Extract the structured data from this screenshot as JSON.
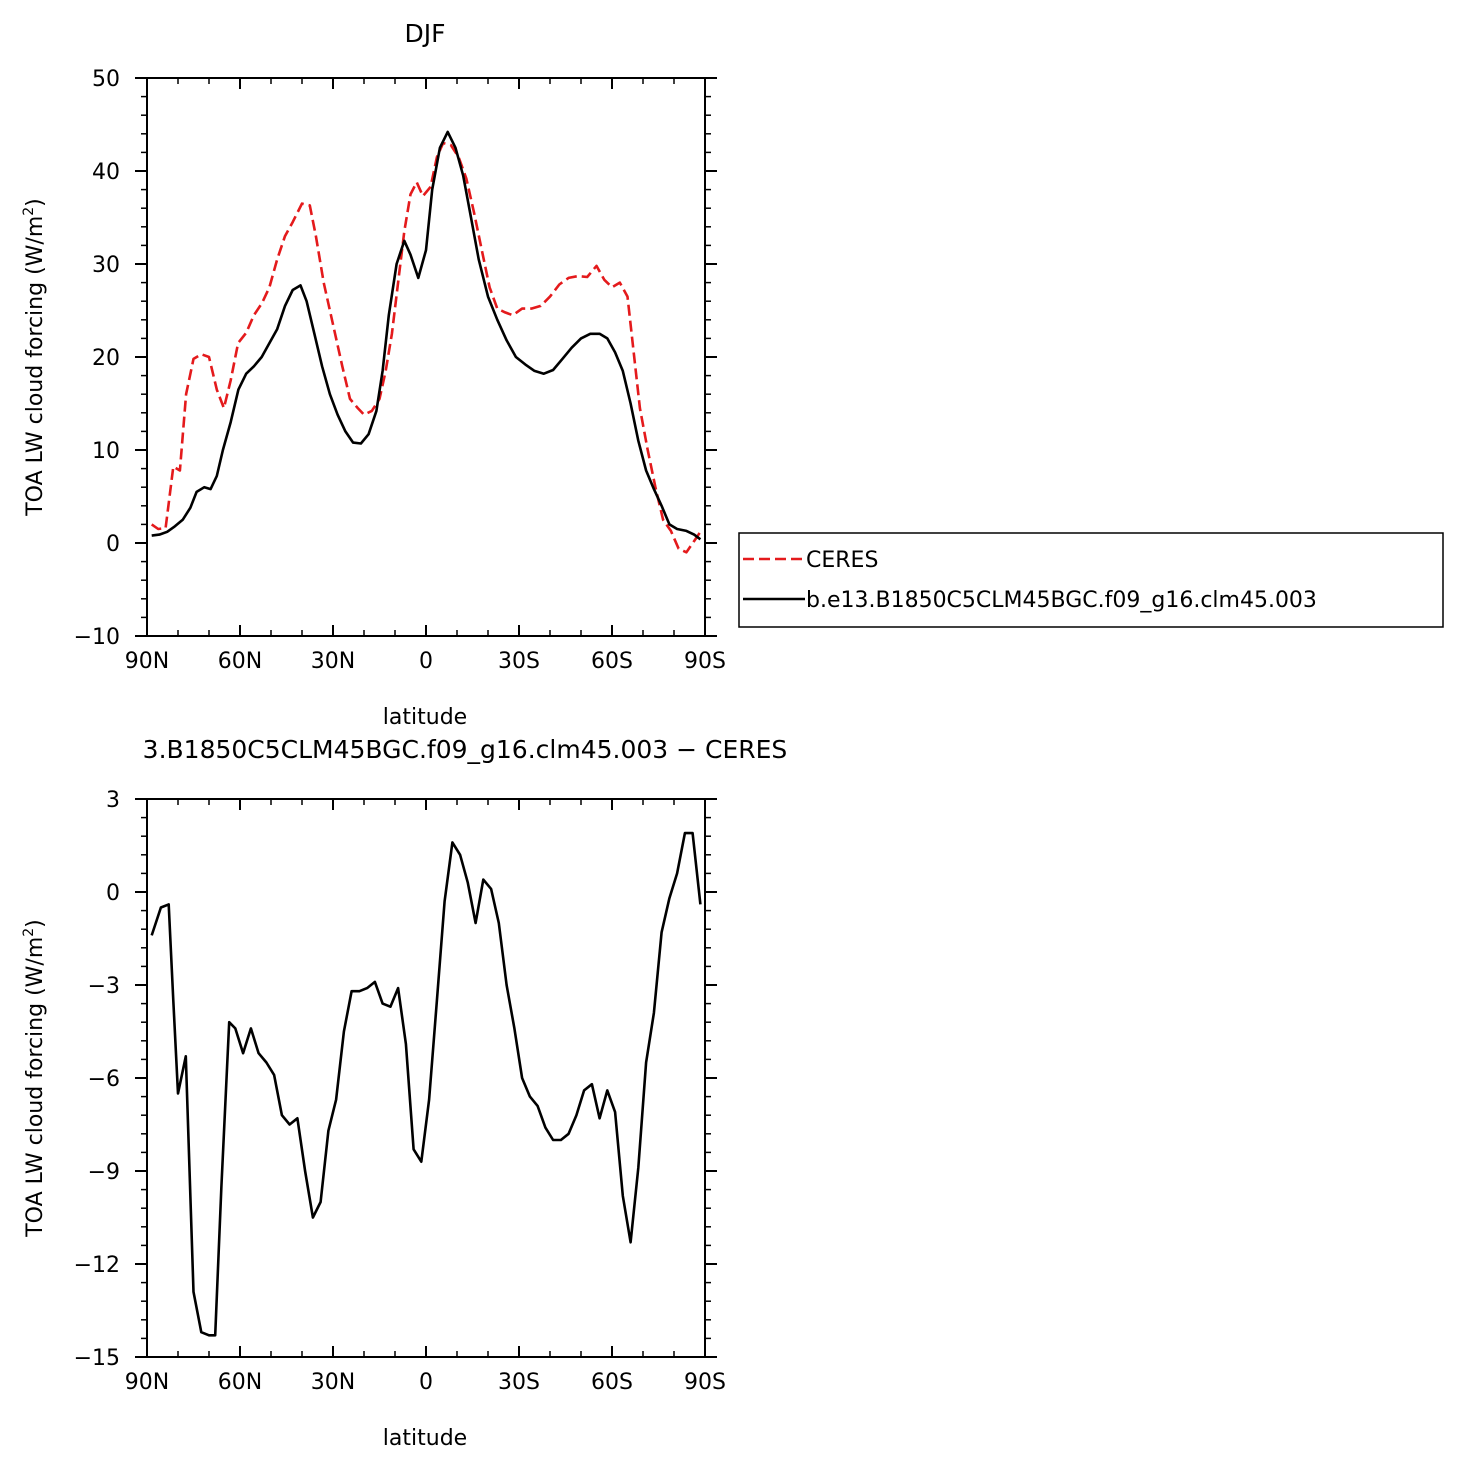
{
  "chart_data": [
    {
      "type": "line",
      "title": "DJF",
      "xlabel": "latitude",
      "ylabel": "TOA LW cloud forcing (W/m²)",
      "ylabel_parts": [
        "TOA LW cloud forcing (W/m",
        "2",
        ")"
      ],
      "xlim": [
        90,
        -90
      ],
      "ylim": [
        -10,
        50
      ],
      "x_ticks": [
        {
          "value": 90,
          "label": "90N"
        },
        {
          "value": 60,
          "label": "60N"
        },
        {
          "value": 30,
          "label": "30N"
        },
        {
          "value": 0,
          "label": "0"
        },
        {
          "value": -30,
          "label": "30S"
        },
        {
          "value": -60,
          "label": "60S"
        },
        {
          "value": -90,
          "label": "90S"
        }
      ],
      "y_ticks": [
        {
          "value": -10,
          "label": "−10"
        },
        {
          "value": 0,
          "label": "0"
        },
        {
          "value": 10,
          "label": "10"
        },
        {
          "value": 20,
          "label": "20"
        },
        {
          "value": 30,
          "label": "30"
        },
        {
          "value": 40,
          "label": "40"
        },
        {
          "value": 50,
          "label": "50"
        }
      ],
      "legend": {
        "placement": "right"
      },
      "series": [
        {
          "name": "CERES",
          "color": "#e41a1c",
          "dash": true,
          "points": [
            [
              88.5,
              2.0
            ],
            [
              86.4,
              1.5
            ],
            [
              84.0,
              1.6
            ],
            [
              81.5,
              8.2
            ],
            [
              79.4,
              7.8
            ],
            [
              77.4,
              16.0
            ],
            [
              75.0,
              19.8
            ],
            [
              72.5,
              20.3
            ],
            [
              70.0,
              20.0
            ],
            [
              67.5,
              16.5
            ],
            [
              65.2,
              14.5
            ],
            [
              63.0,
              17.5
            ],
            [
              60.6,
              21.5
            ],
            [
              58.0,
              22.6
            ],
            [
              55.5,
              24.5
            ],
            [
              52.9,
              25.8
            ],
            [
              50.5,
              27.5
            ],
            [
              48.0,
              30.5
            ],
            [
              45.5,
              33.0
            ],
            [
              43.0,
              34.5
            ],
            [
              40.0,
              36.5
            ],
            [
              37.5,
              36.3
            ],
            [
              35.5,
              33.0
            ],
            [
              33.0,
              28.0
            ],
            [
              30.0,
              23.5
            ],
            [
              27.0,
              19.0
            ],
            [
              24.5,
              15.5
            ],
            [
              22.0,
              14.5
            ],
            [
              20.0,
              13.8
            ],
            [
              17.5,
              14.2
            ],
            [
              15.0,
              15.5
            ],
            [
              13.0,
              18.5
            ],
            [
              11.0,
              22.5
            ],
            [
              9.0,
              28.0
            ],
            [
              7.0,
              33.5
            ],
            [
              5.0,
              37.5
            ],
            [
              3.0,
              38.8
            ],
            [
              1.0,
              37.3
            ],
            [
              -1.5,
              38.3
            ],
            [
              -3.5,
              41.5
            ],
            [
              -5.5,
              43.0
            ],
            [
              -8.0,
              42.8
            ],
            [
              -10.5,
              41.5
            ],
            [
              -13.0,
              39.2
            ],
            [
              -15.5,
              35.5
            ],
            [
              -18.0,
              31.5
            ],
            [
              -20.5,
              27.5
            ],
            [
              -23.0,
              25.2
            ],
            [
              -25.5,
              24.8
            ],
            [
              -28.0,
              24.5
            ],
            [
              -31.0,
              25.2
            ],
            [
              -34.0,
              25.2
            ],
            [
              -37.0,
              25.5
            ],
            [
              -40.0,
              26.5
            ],
            [
              -43.0,
              27.8
            ],
            [
              -46.0,
              28.5
            ],
            [
              -49.0,
              28.7
            ],
            [
              -52.0,
              28.6
            ],
            [
              -55.0,
              29.8
            ],
            [
              -57.5,
              28.3
            ],
            [
              -60.0,
              27.5
            ],
            [
              -62.5,
              28.0
            ],
            [
              -65.0,
              26.5
            ],
            [
              -67.0,
              20.5
            ],
            [
              -69.0,
              14.5
            ],
            [
              -71.5,
              10.0
            ],
            [
              -74.0,
              6.0
            ],
            [
              -76.5,
              2.5
            ],
            [
              -79.0,
              1.3
            ],
            [
              -81.5,
              -0.6
            ],
            [
              -84.0,
              -1.0
            ],
            [
              -86.5,
              0.2
            ],
            [
              -88.5,
              1.2
            ]
          ]
        },
        {
          "name": "b.e13.B1850C5CLM45BGC.f09_g16.clm45.003",
          "color": "#000000",
          "dash": false,
          "points": [
            [
              88.5,
              0.8
            ],
            [
              86.0,
              0.9
            ],
            [
              83.5,
              1.2
            ],
            [
              81.0,
              1.8
            ],
            [
              78.5,
              2.5
            ],
            [
              76.0,
              3.8
            ],
            [
              74.0,
              5.5
            ],
            [
              71.5,
              6.0
            ],
            [
              69.5,
              5.8
            ],
            [
              67.5,
              7.2
            ],
            [
              65.5,
              10.0
            ],
            [
              63.0,
              13.0
            ],
            [
              60.5,
              16.5
            ],
            [
              58.0,
              18.2
            ],
            [
              55.5,
              19.0
            ],
            [
              53.0,
              20.0
            ],
            [
              50.5,
              21.5
            ],
            [
              48.0,
              23.0
            ],
            [
              45.5,
              25.5
            ],
            [
              43.0,
              27.2
            ],
            [
              40.5,
              27.7
            ],
            [
              38.5,
              26.0
            ],
            [
              36.0,
              22.5
            ],
            [
              33.5,
              19.0
            ],
            [
              31.0,
              16.0
            ],
            [
              28.5,
              13.8
            ],
            [
              26.0,
              12.0
            ],
            [
              23.5,
              10.8
            ],
            [
              21.0,
              10.7
            ],
            [
              18.5,
              11.7
            ],
            [
              16.0,
              14.2
            ],
            [
              14.0,
              18.5
            ],
            [
              12.0,
              24.5
            ],
            [
              9.5,
              30.0
            ],
            [
              7.0,
              32.5
            ],
            [
              5.0,
              31.0
            ],
            [
              2.5,
              28.5
            ],
            [
              0.0,
              31.5
            ],
            [
              -2.0,
              38.0
            ],
            [
              -4.5,
              42.5
            ],
            [
              -7.0,
              44.2
            ],
            [
              -9.5,
              42.5
            ],
            [
              -12.0,
              39.5
            ],
            [
              -14.5,
              35.0
            ],
            [
              -17.0,
              30.5
            ],
            [
              -20.0,
              26.5
            ],
            [
              -23.0,
              24.0
            ],
            [
              -26.0,
              21.8
            ],
            [
              -29.0,
              20.0
            ],
            [
              -32.0,
              19.2
            ],
            [
              -35.0,
              18.5
            ],
            [
              -38.0,
              18.2
            ],
            [
              -41.0,
              18.6
            ],
            [
              -44.0,
              19.8
            ],
            [
              -47.0,
              21.0
            ],
            [
              -50.0,
              22.0
            ],
            [
              -53.0,
              22.5
            ],
            [
              -56.0,
              22.5
            ],
            [
              -58.5,
              22.0
            ],
            [
              -61.0,
              20.5
            ],
            [
              -63.5,
              18.5
            ],
            [
              -66.0,
              15.0
            ],
            [
              -68.5,
              11.0
            ],
            [
              -71.0,
              7.8
            ],
            [
              -73.5,
              5.8
            ],
            [
              -76.0,
              4.0
            ],
            [
              -78.5,
              2.0
            ],
            [
              -81.0,
              1.5
            ],
            [
              -84.0,
              1.3
            ],
            [
              -86.5,
              0.9
            ],
            [
              -88.5,
              0.4
            ]
          ]
        }
      ]
    },
    {
      "type": "line",
      "title": "3.B1850C5CLM45BGC.f09_g16.clm45.003 − CERES",
      "xlabel": "latitude",
      "ylabel": "TOA LW cloud forcing (W/m²)",
      "ylabel_parts": [
        "TOA LW cloud forcing (W/m",
        "2",
        ")"
      ],
      "xlim": [
        90,
        -90
      ],
      "ylim": [
        -15,
        3
      ],
      "x_ticks": [
        {
          "value": 90,
          "label": "90N"
        },
        {
          "value": 60,
          "label": "60N"
        },
        {
          "value": 30,
          "label": "30N"
        },
        {
          "value": 0,
          "label": "0"
        },
        {
          "value": -30,
          "label": "30S"
        },
        {
          "value": -60,
          "label": "60S"
        },
        {
          "value": -90,
          "label": "90S"
        }
      ],
      "y_ticks": [
        {
          "value": -15,
          "label": "−15"
        },
        {
          "value": -12,
          "label": "−12"
        },
        {
          "value": -9,
          "label": "−9"
        },
        {
          "value": -6,
          "label": "−6"
        },
        {
          "value": -3,
          "label": "−3"
        },
        {
          "value": 0,
          "label": "0"
        },
        {
          "value": 3,
          "label": "3"
        }
      ],
      "series": [
        {
          "color": "#000000",
          "dash": false,
          "points": [
            [
              88.5,
              -1.4
            ],
            [
              85.5,
              -0.5
            ],
            [
              83.0,
              -0.4
            ],
            [
              81.5,
              -3.5
            ],
            [
              80.0,
              -6.5
            ],
            [
              77.5,
              -5.3
            ],
            [
              75.0,
              -12.9
            ],
            [
              72.5,
              -14.2
            ],
            [
              70.0,
              -14.3
            ],
            [
              68.0,
              -14.3
            ],
            [
              66.0,
              -9.5
            ],
            [
              63.5,
              -4.2
            ],
            [
              61.5,
              -4.4
            ],
            [
              59.0,
              -5.2
            ],
            [
              56.5,
              -4.4
            ],
            [
              54.0,
              -5.2
            ],
            [
              51.5,
              -5.5
            ],
            [
              49.0,
              -5.9
            ],
            [
              46.5,
              -7.2
            ],
            [
              44.0,
              -7.5
            ],
            [
              41.5,
              -7.3
            ],
            [
              39.0,
              -9.0
            ],
            [
              36.5,
              -10.5
            ],
            [
              34.0,
              -10.0
            ],
            [
              31.5,
              -7.7
            ],
            [
              29.0,
              -6.7
            ],
            [
              26.5,
              -4.5
            ],
            [
              24.0,
              -3.2
            ],
            [
              21.5,
              -3.2
            ],
            [
              19.0,
              -3.1
            ],
            [
              16.5,
              -2.9
            ],
            [
              14.0,
              -3.6
            ],
            [
              11.5,
              -3.7
            ],
            [
              9.0,
              -3.1
            ],
            [
              6.5,
              -4.9
            ],
            [
              4.0,
              -8.3
            ],
            [
              1.5,
              -8.7
            ],
            [
              -1.0,
              -6.7
            ],
            [
              -3.5,
              -3.5
            ],
            [
              -6.0,
              -0.3
            ],
            [
              -8.5,
              1.6
            ],
            [
              -11.0,
              1.2
            ],
            [
              -13.5,
              0.3
            ],
            [
              -16.0,
              -1.0
            ],
            [
              -18.5,
              0.4
            ],
            [
              -21.0,
              0.1
            ],
            [
              -23.5,
              -1.0
            ],
            [
              -26.0,
              -3.0
            ],
            [
              -28.5,
              -4.4
            ],
            [
              -31.0,
              -6.0
            ],
            [
              -33.5,
              -6.6
            ],
            [
              -36.0,
              -6.9
            ],
            [
              -38.5,
              -7.6
            ],
            [
              -41.0,
              -8.0
            ],
            [
              -43.5,
              -8.0
            ],
            [
              -46.0,
              -7.8
            ],
            [
              -48.5,
              -7.2
            ],
            [
              -51.0,
              -6.4
            ],
            [
              -53.5,
              -6.2
            ],
            [
              -56.0,
              -7.3
            ],
            [
              -58.5,
              -6.4
            ],
            [
              -61.0,
              -7.1
            ],
            [
              -63.5,
              -9.8
            ],
            [
              -66.0,
              -11.3
            ],
            [
              -68.5,
              -8.9
            ],
            [
              -71.0,
              -5.5
            ],
            [
              -73.5,
              -3.9
            ],
            [
              -76.0,
              -1.3
            ],
            [
              -78.5,
              -0.2
            ],
            [
              -81.0,
              0.6
            ],
            [
              -83.5,
              1.9
            ],
            [
              -86.0,
              1.9
            ],
            [
              -88.5,
              -0.4
            ]
          ]
        }
      ]
    }
  ]
}
